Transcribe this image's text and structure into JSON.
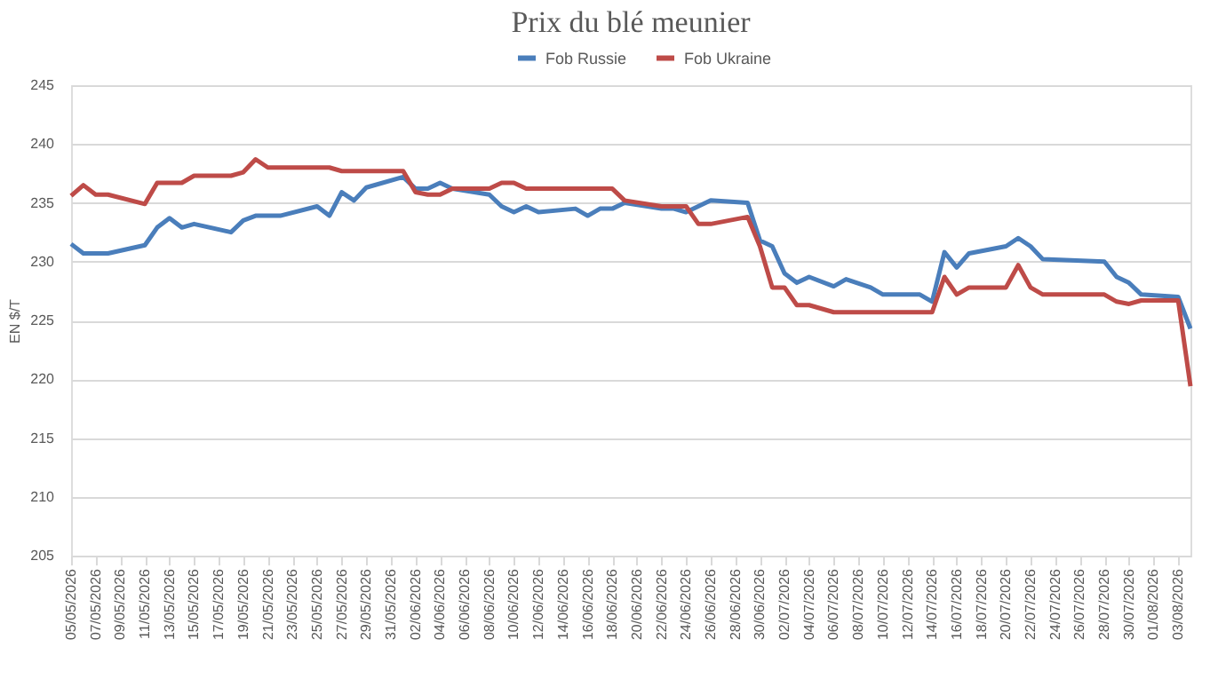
{
  "chart_data": {
    "type": "line",
    "title": "Prix du blé meunier",
    "ylabel": "EN $/T",
    "xlim": [
      "2026-05-05",
      "2026-08-04"
    ],
    "ylim": [
      205,
      245
    ],
    "yticks": [
      205,
      210,
      215,
      220,
      225,
      230,
      235,
      240,
      245
    ],
    "xticks": [
      {
        "value": "2026-05-05",
        "label": "05/05/2026"
      },
      {
        "value": "2026-05-07",
        "label": "07/05/2026"
      },
      {
        "value": "2026-05-09",
        "label": "09/05/2026"
      },
      {
        "value": "2026-05-11",
        "label": "11/05/2026"
      },
      {
        "value": "2026-05-13",
        "label": "13/05/2026"
      },
      {
        "value": "2026-05-15",
        "label": "15/05/2026"
      },
      {
        "value": "2026-05-17",
        "label": "17/05/2026"
      },
      {
        "value": "2026-05-19",
        "label": "19/05/2026"
      },
      {
        "value": "2026-05-21",
        "label": "21/05/2026"
      },
      {
        "value": "2026-05-23",
        "label": "23/05/2026"
      },
      {
        "value": "2026-05-25",
        "label": "25/05/2026"
      },
      {
        "value": "2026-05-27",
        "label": "27/05/2026"
      },
      {
        "value": "2026-05-29",
        "label": "29/05/2026"
      },
      {
        "value": "2026-05-31",
        "label": "31/05/2026"
      },
      {
        "value": "2026-06-02",
        "label": "02/06/2026"
      },
      {
        "value": "2026-06-04",
        "label": "04/06/2026"
      },
      {
        "value": "2026-06-06",
        "label": "06/06/2026"
      },
      {
        "value": "2026-06-08",
        "label": "08/06/2026"
      },
      {
        "value": "2026-06-10",
        "label": "10/06/2026"
      },
      {
        "value": "2026-06-12",
        "label": "12/06/2026"
      },
      {
        "value": "2026-06-14",
        "label": "14/06/2026"
      },
      {
        "value": "2026-06-16",
        "label": "16/06/2026"
      },
      {
        "value": "2026-06-18",
        "label": "18/06/2026"
      },
      {
        "value": "2026-06-20",
        "label": "20/06/2026"
      },
      {
        "value": "2026-06-22",
        "label": "22/06/2026"
      },
      {
        "value": "2026-06-24",
        "label": "24/06/2026"
      },
      {
        "value": "2026-06-26",
        "label": "26/06/2026"
      },
      {
        "value": "2026-06-28",
        "label": "28/06/2026"
      },
      {
        "value": "2026-06-30",
        "label": "30/06/2026"
      },
      {
        "value": "2026-07-02",
        "label": "02/07/2026"
      },
      {
        "value": "2026-07-04",
        "label": "04/07/2026"
      },
      {
        "value": "2026-07-06",
        "label": "06/07/2026"
      },
      {
        "value": "2026-07-08",
        "label": "08/07/2026"
      },
      {
        "value": "2026-07-10",
        "label": "10/07/2026"
      },
      {
        "value": "2026-07-12",
        "label": "12/07/2026"
      },
      {
        "value": "2026-07-14",
        "label": "14/07/2026"
      },
      {
        "value": "2026-07-16",
        "label": "16/07/2026"
      },
      {
        "value": "2026-07-18",
        "label": "18/07/2026"
      },
      {
        "value": "2026-07-20",
        "label": "20/07/2026"
      },
      {
        "value": "2026-07-22",
        "label": "22/07/2026"
      },
      {
        "value": "2026-07-24",
        "label": "24/07/2026"
      },
      {
        "value": "2026-07-26",
        "label": "26/07/2026"
      },
      {
        "value": "2026-07-28",
        "label": "28/07/2026"
      },
      {
        "value": "2026-07-30",
        "label": "30/07/2026"
      },
      {
        "value": "2026-08-01",
        "label": "01/08/2026"
      },
      {
        "value": "2026-08-03",
        "label": "03/08/2026"
      }
    ],
    "grid": "y",
    "legend": "top",
    "marker": "none",
    "line_style": "solid",
    "series": [
      {
        "name": "Fob Russie",
        "color": "#4a7ebb",
        "x": [
          "2026-05-05",
          "2026-05-06",
          "2026-05-08",
          "2026-05-11",
          "2026-05-12",
          "2026-05-13",
          "2026-05-14",
          "2026-05-15",
          "2026-05-18",
          "2026-05-19",
          "2026-05-20",
          "2026-05-22",
          "2026-05-25",
          "2026-05-26",
          "2026-05-27",
          "2026-05-28",
          "2026-05-29",
          "2026-06-01",
          "2026-06-02",
          "2026-06-03",
          "2026-06-04",
          "2026-06-05",
          "2026-06-08",
          "2026-06-09",
          "2026-06-10",
          "2026-06-11",
          "2026-06-12",
          "2026-06-15",
          "2026-06-16",
          "2026-06-17",
          "2026-06-18",
          "2026-06-19",
          "2026-06-22",
          "2026-06-23",
          "2026-06-24",
          "2026-06-26",
          "2026-06-29",
          "2026-06-30",
          "2026-07-01",
          "2026-07-02",
          "2026-07-03",
          "2026-07-04",
          "2026-07-06",
          "2026-07-07",
          "2026-07-09",
          "2026-07-10",
          "2026-07-13",
          "2026-07-14",
          "2026-07-15",
          "2026-07-16",
          "2026-07-17",
          "2026-07-20",
          "2026-07-21",
          "2026-07-22",
          "2026-07-23",
          "2026-07-28",
          "2026-07-29",
          "2026-07-30",
          "2026-07-31",
          "2026-08-03",
          "2026-08-04"
        ],
        "values": [
          231.5,
          230.7,
          230.7,
          231.4,
          232.9,
          233.7,
          232.9,
          233.2,
          232.5,
          233.5,
          233.9,
          233.9,
          234.7,
          233.9,
          235.9,
          235.2,
          236.3,
          237.2,
          236.2,
          236.2,
          236.7,
          236.2,
          235.7,
          234.7,
          234.2,
          234.7,
          234.2,
          234.5,
          233.9,
          234.5,
          234.5,
          235.0,
          234.5,
          234.5,
          234.2,
          235.2,
          235.0,
          231.8,
          231.3,
          229.0,
          228.2,
          228.7,
          227.9,
          228.5,
          227.8,
          227.2,
          227.2,
          226.6,
          230.8,
          229.5,
          230.7,
          231.3,
          232.0,
          231.3,
          230.2,
          230.0,
          228.7,
          228.2,
          227.2,
          227.0,
          224.3
        ]
      },
      {
        "name": "Fob Ukraine",
        "color": "#be4b48",
        "x": [
          "2026-05-05",
          "2026-05-06",
          "2026-05-07",
          "2026-05-08",
          "2026-05-11",
          "2026-05-12",
          "2026-05-14",
          "2026-05-15",
          "2026-05-18",
          "2026-05-19",
          "2026-05-20",
          "2026-05-21",
          "2026-05-26",
          "2026-05-27",
          "2026-06-01",
          "2026-06-02",
          "2026-06-03",
          "2026-06-04",
          "2026-06-05",
          "2026-06-08",
          "2026-06-09",
          "2026-06-10",
          "2026-06-11",
          "2026-06-18",
          "2026-06-19",
          "2026-06-22",
          "2026-06-24",
          "2026-06-25",
          "2026-06-26",
          "2026-06-29",
          "2026-06-30",
          "2026-07-01",
          "2026-07-02",
          "2026-07-03",
          "2026-07-04",
          "2026-07-06",
          "2026-07-14",
          "2026-07-15",
          "2026-07-16",
          "2026-07-17",
          "2026-07-20",
          "2026-07-21",
          "2026-07-22",
          "2026-07-23",
          "2026-07-28",
          "2026-07-29",
          "2026-07-30",
          "2026-07-31",
          "2026-08-03",
          "2026-08-04"
        ],
        "values": [
          235.6,
          236.5,
          235.7,
          235.7,
          234.9,
          236.7,
          236.7,
          237.3,
          237.3,
          237.6,
          238.7,
          238.0,
          238.0,
          237.7,
          237.7,
          235.9,
          235.7,
          235.7,
          236.2,
          236.2,
          236.7,
          236.7,
          236.2,
          236.2,
          235.2,
          234.7,
          234.7,
          233.2,
          233.2,
          233.8,
          231.3,
          227.8,
          227.8,
          226.3,
          226.3,
          225.7,
          225.7,
          228.7,
          227.2,
          227.8,
          227.8,
          229.7,
          227.8,
          227.2,
          227.2,
          226.6,
          226.4,
          226.7,
          226.7,
          219.4
        ]
      }
    ]
  }
}
